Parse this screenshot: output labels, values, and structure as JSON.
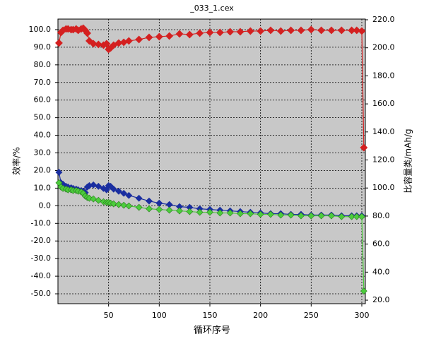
{
  "chart_data": {
    "type": "line",
    "title": "_033_1.cex",
    "x_label": "循环序号",
    "y_label": "效率/%",
    "y2_label": "比容量类/mAh/g",
    "grid": true,
    "x": [
      1,
      3,
      5,
      8,
      10,
      13,
      15,
      18,
      20,
      23,
      25,
      27,
      29,
      31,
      35,
      40,
      45,
      48,
      50,
      52,
      55,
      60,
      65,
      70,
      80,
      90,
      100,
      110,
      120,
      130,
      140,
      150,
      160,
      170,
      180,
      190,
      200,
      210,
      220,
      230,
      240,
      250,
      260,
      270,
      280,
      290,
      295,
      300,
      302
    ],
    "xlim": [
      0,
      303.5
    ],
    "xticks": [
      50,
      100,
      150,
      200,
      250,
      300
    ],
    "ylim": [
      -55.6,
      106
    ],
    "yticks": [
      {
        "value": -50,
        "label": "-50.0"
      },
      {
        "value": -40,
        "label": "-40.0"
      },
      {
        "value": -30,
        "label": "-30.0"
      },
      {
        "value": -20,
        "label": "-20.0"
      },
      {
        "value": -10,
        "label": "-10.0"
      },
      {
        "value": 0,
        "label": "0.0"
      },
      {
        "value": 10,
        "label": "10.0"
      },
      {
        "value": 20,
        "label": "20.0"
      },
      {
        "value": 30,
        "label": "30.0"
      },
      {
        "value": 40,
        "label": "40.0"
      },
      {
        "value": 50,
        "label": "50.0"
      },
      {
        "value": 60,
        "label": "60.0"
      },
      {
        "value": 70,
        "label": "70.0"
      },
      {
        "value": 80,
        "label": "80.0"
      },
      {
        "value": 90,
        "label": "90.0"
      },
      {
        "value": 100,
        "label": "100.0"
      }
    ],
    "y2lim": [
      17.5,
      220.5
    ],
    "y2ticks": [
      {
        "value": 20,
        "label": "20.0"
      },
      {
        "value": 40,
        "label": "40.0"
      },
      {
        "value": 60,
        "label": "60.0"
      },
      {
        "value": 80,
        "label": "80.0"
      },
      {
        "value": 100,
        "label": "100.0"
      },
      {
        "value": 120,
        "label": "120.0"
      },
      {
        "value": 140,
        "label": "140.0"
      },
      {
        "value": 160,
        "label": "160.0"
      },
      {
        "value": 180,
        "label": "180.0"
      },
      {
        "value": 200,
        "label": "200.0"
      },
      {
        "value": 220,
        "label": "220.0"
      }
    ],
    "series": [
      {
        "color": "#d42020",
        "axis": "y",
        "values": [
          92.4,
          98.4,
          99.6,
          100.4,
          100.4,
          100,
          100,
          100.4,
          99.6,
          100.4,
          100.8,
          99.6,
          98,
          93.6,
          92,
          91.6,
          91.2,
          92,
          88.8,
          89.6,
          91.2,
          92.4,
          92.8,
          93.6,
          94.4,
          95.6,
          96,
          96.4,
          97.6,
          97.2,
          98,
          98.4,
          98.4,
          98.8,
          98.8,
          99.2,
          99.2,
          99.6,
          99.2,
          99.6,
          99.6,
          100,
          99.6,
          99.6,
          99.6,
          99.6,
          99.6,
          99.2,
          33.0
        ]
      },
      {
        "color": "#1a2ea0",
        "axis": "y2",
        "values": [
          111.2,
          103.7,
          102.7,
          101.2,
          100.7,
          100.2,
          99.7,
          99.2,
          98.7,
          98.2,
          97.7,
          96.7,
          100.7,
          101.7,
          102.2,
          101.2,
          99.7,
          98.7,
          101.7,
          101.2,
          99.2,
          97.7,
          96.2,
          94.7,
          92.7,
          90.7,
          89.2,
          88.2,
          86.7,
          86.2,
          85.2,
          84.7,
          84.2,
          83.7,
          83.2,
          82.7,
          82.2,
          81.7,
          81.7,
          81.2,
          81.2,
          80.7,
          80.7,
          80.7,
          80.2,
          80.2,
          80.2,
          80.2,
          null
        ]
      },
      {
        "color": "#4ccc3c",
        "axis": "y2",
        "values": [
          103.7,
          100.7,
          99.7,
          99.2,
          98.7,
          98.7,
          98.2,
          98.2,
          97.7,
          97.2,
          96.2,
          94.2,
          93.2,
          92.7,
          92.2,
          91.2,
          90.2,
          89.7,
          89.7,
          89.2,
          88.7,
          88.2,
          87.7,
          87.2,
          86.2,
          85.2,
          84.7,
          84.2,
          83.7,
          83.2,
          82.7,
          82.7,
          82.2,
          82.2,
          81.7,
          81.7,
          81.2,
          81.2,
          80.7,
          80.7,
          80.2,
          80.2,
          80.2,
          80.2,
          79.6,
          79.6,
          79.6,
          79.6,
          26.5
        ]
      }
    ]
  }
}
